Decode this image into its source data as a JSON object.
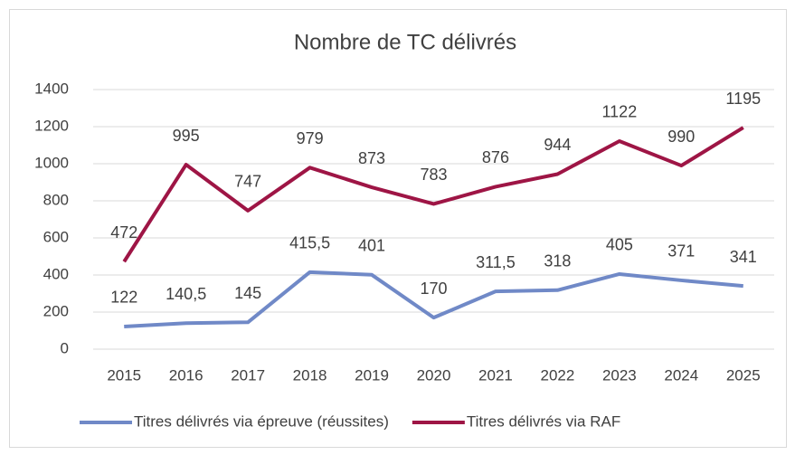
{
  "chart_data": {
    "type": "line",
    "title": "Nombre de TC délivrés",
    "categories": [
      "2015",
      "2016",
      "2017",
      "2018",
      "2019",
      "2020",
      "2021",
      "2022",
      "2023",
      "2024",
      "2025"
    ],
    "series": [
      {
        "name": "Titres délivrés via épreuve (réussites)",
        "color": "#7089c7",
        "values": [
          122,
          140.5,
          145,
          415.5,
          401,
          170,
          311.5,
          318,
          405,
          371,
          341
        ],
        "value_labels": [
          "122",
          "140,5",
          "145",
          "415,5",
          "401",
          "170",
          "311,5",
          "318",
          "405",
          "371",
          "341"
        ]
      },
      {
        "name": "Titres délivrés via RAF",
        "color": "#9e1545",
        "values": [
          472,
          995,
          747,
          979,
          873,
          783,
          876,
          944,
          1122,
          990,
          1195
        ]
      }
    ],
    "ylim": [
      0,
      1400
    ],
    "yticks": [
      0,
      200,
      400,
      600,
      800,
      1000,
      1200,
      1400
    ],
    "grid": true,
    "legend": "bottom"
  }
}
